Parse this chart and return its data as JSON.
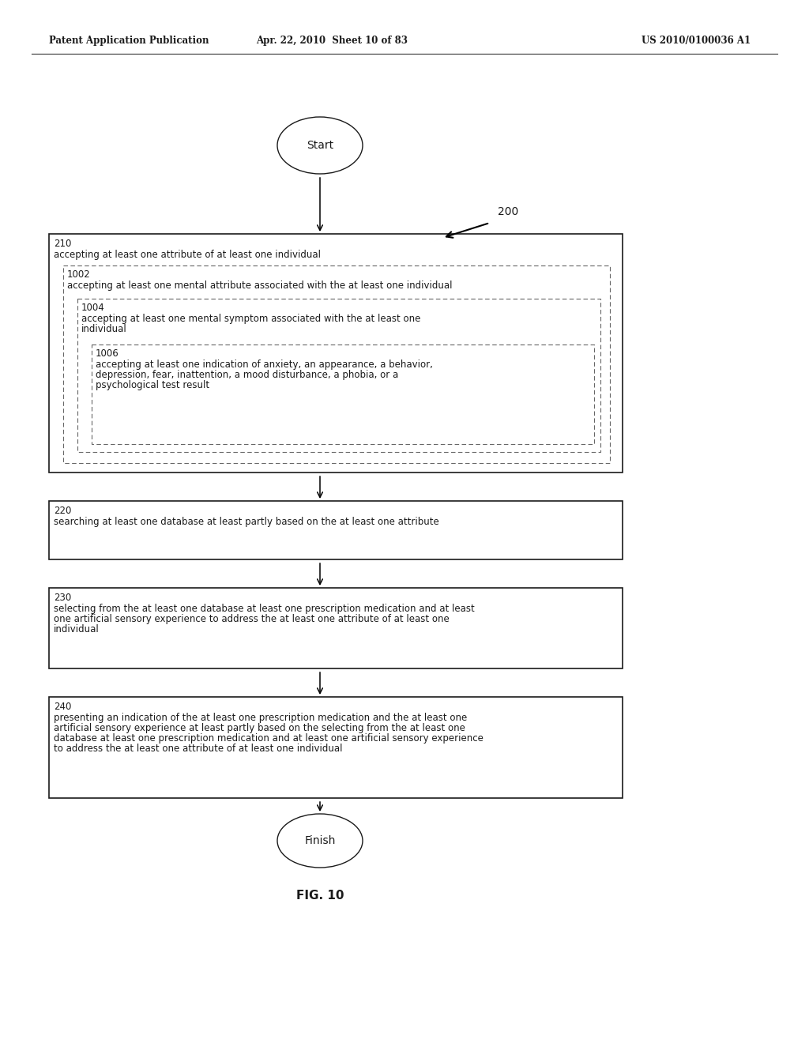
{
  "header_left": "Patent Application Publication",
  "header_mid": "Apr. 22, 2010  Sheet 10 of 83",
  "header_right": "US 2010/0100036 A1",
  "fig_label": "FIG. 10",
  "ref_200": "200",
  "start_label": "Start",
  "finish_label": "Finish",
  "box210_id": "210",
  "box210_text": "accepting at least one attribute of at least one individual",
  "box1002_id": "1002",
  "box1002_text": "accepting at least one mental attribute associated with the at least one individual",
  "box1004_id": "1004",
  "box1004_text_line1": "accepting at least one mental symptom associated with the at least one",
  "box1004_text_line2": "individual",
  "box1006_id": "1006",
  "box1006_text_line1": "accepting at least one indication of anxiety, an appearance, a behavior,",
  "box1006_text_line2": "depression, fear, inattention, a mood disturbance, a phobia, or a",
  "box1006_text_line3": "psychological test result",
  "box220_id": "220",
  "box220_text": "searching at least one database at least partly based on the at least one attribute",
  "box230_id": "230",
  "box230_text_line1": "selecting from the at least one database at least one prescription medication and at least",
  "box230_text_line2": "one artificial sensory experience to address the at least one attribute of at least one",
  "box230_text_line3": "individual",
  "box240_id": "240",
  "box240_text_line1": "presenting an indication of the at least one prescription medication and the at least one",
  "box240_text_line2": "artificial sensory experience at least partly based on the selecting from the at least one",
  "box240_text_line3": "database at least one prescription medication and at least one artificial sensory experience",
  "box240_text_line4": "to address the at least one attribute of at least one individual",
  "bg_color": "#ffffff",
  "text_color": "#1a1a1a",
  "box_edge_color": "#1a1a1a",
  "dashed_edge_color": "#555555"
}
